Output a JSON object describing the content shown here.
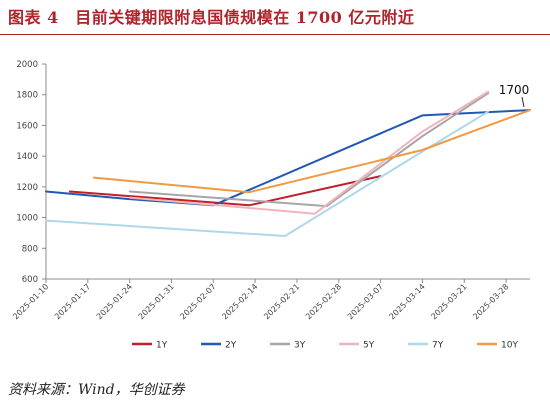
{
  "header": {
    "title": "图表 4　目前关键期限附息国债规模在 1700 亿元附近"
  },
  "footer": {
    "source": "资料来源：Wind，华创证券"
  },
  "chart_data": {
    "type": "line",
    "title": "",
    "xlabel": "",
    "ylabel": "",
    "ylim": [
      600,
      2000
    ],
    "yticks": [
      600,
      800,
      1000,
      1200,
      1400,
      1600,
      1800,
      2000
    ],
    "xticks": [
      "2025-01-10",
      "2025-01-17",
      "2025-01-24",
      "2025-01-31",
      "2025-02-07",
      "2025-02-14",
      "2025-02-21",
      "2025-02-28",
      "2025-03-07",
      "2025-03-14",
      "2025-03-21",
      "2025-03-28"
    ],
    "x_range": [
      "2025-01-10",
      "2025-04-01"
    ],
    "grid": false,
    "legend_position": "bottom",
    "annotation": {
      "text": "1700",
      "date": "2025-04-01",
      "value": 1700
    },
    "series": [
      {
        "name": "1Y",
        "color": "#c0202a",
        "points": [
          [
            "2025-01-14",
            1170
          ],
          [
            "2025-02-13",
            1080
          ],
          [
            "2025-03-07",
            1270
          ]
        ]
      },
      {
        "name": "2Y",
        "color": "#2158b5",
        "points": [
          [
            "2025-01-10",
            1170
          ],
          [
            "2025-01-24",
            1120
          ],
          [
            "2025-02-07",
            1080
          ],
          [
            "2025-03-14",
            1665
          ],
          [
            "2025-04-01",
            1700
          ]
        ]
      },
      {
        "name": "3Y",
        "color": "#a6a6a6",
        "points": [
          [
            "2025-01-24",
            1170
          ],
          [
            "2025-02-26",
            1075
          ],
          [
            "2025-03-14",
            1530
          ],
          [
            "2025-03-25",
            1810
          ]
        ]
      },
      {
        "name": "5Y",
        "color": "#f2b4bb",
        "points": [
          [
            "2025-01-24",
            1130
          ],
          [
            "2025-02-24",
            1025
          ],
          [
            "2025-03-14",
            1560
          ],
          [
            "2025-03-25",
            1820
          ]
        ]
      },
      {
        "name": "7Y",
        "color": "#aed8ea",
        "points": [
          [
            "2025-01-10",
            980
          ],
          [
            "2025-02-19",
            880
          ],
          [
            "2025-03-14",
            1430
          ],
          [
            "2025-03-25",
            1690
          ]
        ]
      },
      {
        "name": "10Y",
        "color": "#ef9a45",
        "points": [
          [
            "2025-01-18",
            1260
          ],
          [
            "2025-02-13",
            1165
          ],
          [
            "2025-03-14",
            1440
          ],
          [
            "2025-04-01",
            1700
          ]
        ]
      }
    ]
  }
}
